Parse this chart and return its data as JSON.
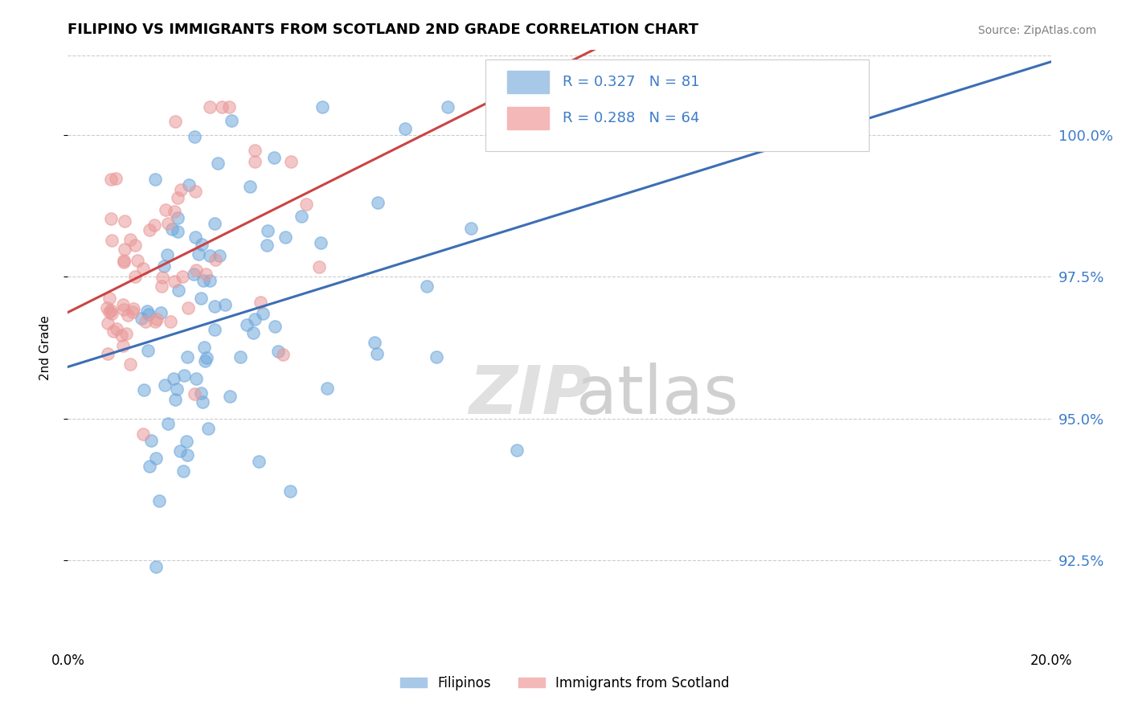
{
  "title": "FILIPINO VS IMMIGRANTS FROM SCOTLAND 2ND GRADE CORRELATION CHART",
  "source": "Source: ZipAtlas.com",
  "ylabel": "2nd Grade",
  "y_tick_labels": [
    "92.5%",
    "95.0%",
    "97.5%",
    "100.0%"
  ],
  "y_tick_values": [
    92.5,
    95.0,
    97.5,
    100.0
  ],
  "xlim": [
    0.0,
    20.0
  ],
  "ylim": [
    91.0,
    101.5
  ],
  "blue_R": 0.327,
  "blue_N": 81,
  "pink_R": 0.288,
  "pink_N": 64,
  "blue_color": "#6fa8dc",
  "pink_color": "#ea9999",
  "blue_line_color": "#3d6eb4",
  "pink_line_color": "#cc4444",
  "legend_label_blue": "Filipinos",
  "legend_label_pink": "Immigrants from Scotland",
  "watermark_zip": "ZIP",
  "watermark_atlas": "atlas"
}
